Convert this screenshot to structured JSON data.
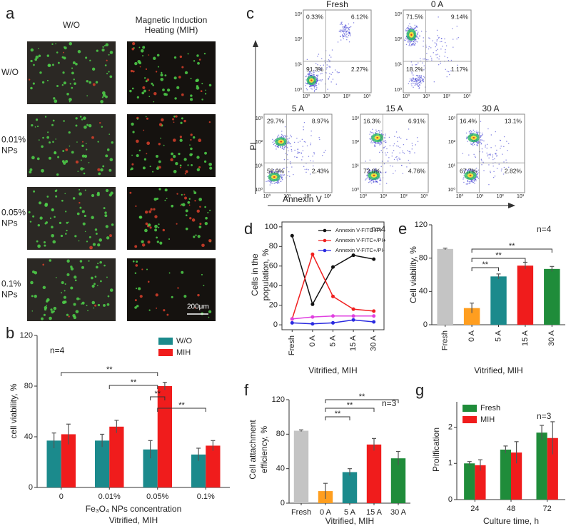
{
  "panel_a": {
    "panel": "a",
    "columns": [
      [
        "W/O"
      ],
      [
        "Magnetic Induction",
        "Heating (MIH)"
      ]
    ],
    "rows": [
      [
        "W/O"
      ],
      [
        "0.01%",
        "NPs"
      ],
      [
        "0.05%",
        "NPs"
      ],
      [
        "0.1%",
        "NPs"
      ]
    ],
    "scale_bar": "200μm"
  },
  "panel_c": {
    "panel": "c",
    "ylabel": "PI",
    "xlabel": "Annexin V",
    "axis_ticks": [
      "10⁰",
      "10¹",
      "10²",
      "10³"
    ],
    "plots": [
      {
        "title": "Fresh",
        "quadrants": [
          "0.33%",
          "6.12%",
          "91.3%",
          "2.27%"
        ]
      },
      {
        "title": "0 A",
        "quadrants": [
          "71.5%",
          "9.14%",
          "18.2%",
          "1.17%"
        ]
      },
      {
        "title": "5 A",
        "quadrants": [
          "29.7%",
          "8.97%",
          "58.9%",
          "2.43%"
        ]
      },
      {
        "title": "15 A",
        "quadrants": [
          "16.3%",
          "6.91%",
          "72.0%",
          "4.76%"
        ]
      },
      {
        "title": "30 A",
        "quadrants": [
          "16.4%",
          "13.1%",
          "67.7%",
          "2.82%"
        ]
      }
    ]
  },
  "chart_data": [
    {
      "type": "bar",
      "panel": "b",
      "annotation": "n=4",
      "ylabel": [
        "cell viability, %"
      ],
      "xlabel": [
        "Fe₃O₄ NPs concentration",
        "Vitrified, MIH"
      ],
      "categories": [
        "0",
        "0.01%",
        "0.05%",
        "0.1%"
      ],
      "series": [
        {
          "name": "W/O",
          "color": "#1b8a8c",
          "values": [
            37,
            37,
            30,
            26
          ],
          "errors": [
            6,
            5,
            7,
            5
          ]
        },
        {
          "name": "MIH",
          "color": "#f01c1c",
          "values": [
            42,
            48,
            80,
            33
          ],
          "errors": [
            8,
            5,
            3,
            4
          ]
        }
      ],
      "ylim": [
        0,
        120
      ],
      "yticks": [
        0,
        40,
        80,
        120
      ],
      "brackets": [
        {
          "label": "**",
          "from": "0",
          "to": "0.05%"
        },
        {
          "label": "**",
          "from": "0.01%",
          "to": "0.05%"
        },
        {
          "label": "**",
          "from": "0.05%",
          "to": "0.05%"
        },
        {
          "label": "**",
          "from": "0.05%",
          "to": "0.1%"
        }
      ]
    },
    {
      "type": "line",
      "panel": "d",
      "annotation": "n=4",
      "ylabel": [
        "Cells in the",
        "population, %"
      ],
      "xlabel": [
        "Vitrified, MIH"
      ],
      "categories": [
        "Fresh",
        "0 A",
        "5 A",
        "15 A",
        "30 A"
      ],
      "series": [
        {
          "name": "Annexin V-FITC-/PI-",
          "color": "#111111",
          "values": [
            91,
            21,
            59,
            71,
            67
          ]
        },
        {
          "name": "Annexin V-FITC+/PI+",
          "color": "#f02020",
          "values": [
            6,
            72,
            29,
            16,
            14
          ]
        },
        {
          "name": "Annexin V-FITC+/PI-",
          "color": "#2a2ae0",
          "values": [
            2,
            1,
            2,
            5,
            3
          ]
        },
        {
          "color": "#e040e0",
          "values": [
            6,
            8,
            9,
            9,
            9
          ]
        }
      ],
      "ylim": [
        -5,
        105
      ],
      "yticks": [
        0,
        20,
        40,
        60,
        80,
        100
      ]
    },
    {
      "type": "bar",
      "panel": "e",
      "annotation": "n=4",
      "ylabel": [
        "Cell viability, %"
      ],
      "xlabel": [
        "Vitrified, MIH"
      ],
      "categories": [
        "Fresh",
        "0 A",
        "5 A",
        "15 A",
        "30 A"
      ],
      "values": [
        91,
        20,
        58,
        71,
        67
      ],
      "errors": [
        1,
        6,
        3,
        4,
        3
      ],
      "colors": [
        "#c4c4c4",
        "#ff9e1f",
        "#1b8a8c",
        "#f01c1c",
        "#1f8c3a"
      ],
      "ylim": [
        0,
        120
      ],
      "yticks": [
        0,
        40,
        80,
        120
      ],
      "brackets": [
        {
          "label": "**",
          "from": "0 A",
          "to": "30 A"
        },
        {
          "label": "**",
          "from": "0 A",
          "to": "15 A"
        },
        {
          "label": "**",
          "from": "0 A",
          "to": "5 A"
        }
      ]
    },
    {
      "type": "bar",
      "panel": "f",
      "annotation": "n=3",
      "ylabel": [
        "Cell attachment",
        "efficiency, %"
      ],
      "xlabel": [
        "Vitrified, MIH"
      ],
      "categories": [
        "Fresh",
        "0 A",
        "5 A",
        "15 A",
        "30 A"
      ],
      "values": [
        84,
        14,
        36,
        68,
        52
      ],
      "errors": [
        1,
        9,
        4,
        7,
        8
      ],
      "colors": [
        "#c4c4c4",
        "#ff9e1f",
        "#1b8a8c",
        "#f01c1c",
        "#1f8c3a"
      ],
      "ylim": [
        0,
        120
      ],
      "yticks": [
        0,
        40,
        80,
        120
      ],
      "brackets": [
        {
          "label": "**",
          "from": "0 A",
          "to": "30 A"
        },
        {
          "label": "**",
          "from": "0 A",
          "to": "15 A"
        },
        {
          "label": "**",
          "from": "0 A",
          "to": "5 A"
        }
      ]
    },
    {
      "type": "bar",
      "panel": "g",
      "annotation": "n=3",
      "ylabel": [
        "Proilfication"
      ],
      "xlabel": [
        "Culture time, h"
      ],
      "categories": [
        "24",
        "48",
        "72"
      ],
      "series": [
        {
          "name": "Fresh",
          "color": "#1f8c3a",
          "values": [
            1.0,
            1.38,
            1.85
          ],
          "errors": [
            0.05,
            0.1,
            0.2
          ]
        },
        {
          "name": "MIH",
          "color": "#f01c1c",
          "values": [
            0.95,
            1.3,
            1.7
          ],
          "errors": [
            0.15,
            0.3,
            0.45
          ]
        }
      ],
      "ylim": [
        0,
        2.7
      ],
      "yticks": [
        0,
        1,
        2
      ]
    }
  ]
}
